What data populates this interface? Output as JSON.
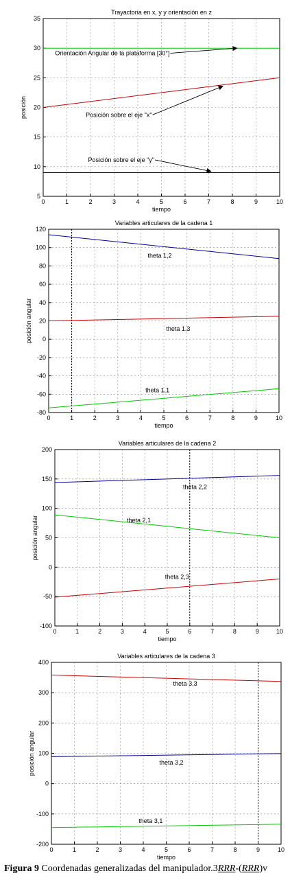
{
  "figure": {
    "caption_prefix": "Figura 9",
    "caption_text": "Coordenadas generalizadas del manipulador.3",
    "caption_underlined": "RRR",
    "caption_mid": "-(",
    "caption_underlined2": "RRR",
    "caption_end": ")v"
  },
  "colors": {
    "green": "#00cc00",
    "red": "#cc0000",
    "blue": "#000099",
    "grid": "#000000"
  },
  "chart_data": [
    {
      "type": "line",
      "title": "Trayactoria en x, y y orientación en z",
      "xlabel": "tiempo",
      "ylabel": "posición",
      "xlim": [
        0,
        10
      ],
      "ylim": [
        5,
        35
      ],
      "xticks": [
        0,
        1,
        2,
        3,
        4,
        5,
        6,
        7,
        8,
        9,
        10
      ],
      "yticks": [
        5,
        10,
        15,
        20,
        25,
        30,
        35
      ],
      "grid": true,
      "series": [
        {
          "color": "#00cc00",
          "x": [
            0,
            10
          ],
          "y": [
            30,
            30
          ]
        },
        {
          "color": "#cc0000",
          "x": [
            0,
            10
          ],
          "y": [
            20,
            25
          ]
        },
        {
          "color": "#000099",
          "x": [
            0,
            10
          ],
          "y": [
            9,
            9
          ]
        }
      ],
      "annotations": [
        {
          "text": "Orientación Angular de la plataforma [30°]",
          "tx": 0.5,
          "ty": 28.8,
          "ax": 8.2,
          "ay": 30
        },
        {
          "text": "Posición sobre el eje \"x\"",
          "tx": 1.8,
          "ty": 18.4,
          "ax": 7.6,
          "ay": 23.6
        },
        {
          "text": "Posición sobre el eje \"y\"",
          "tx": 1.9,
          "ty": 10.8,
          "ax": 7.1,
          "ay": 9.2
        }
      ]
    },
    {
      "type": "line",
      "title": "Variables articulares de la cadena 1",
      "xlabel": "tiempo",
      "ylabel": "posición angular",
      "xlim": [
        0,
        10
      ],
      "ylim": [
        -80,
        120
      ],
      "xticks": [
        0,
        1,
        2,
        3,
        4,
        5,
        6,
        7,
        8,
        9,
        10
      ],
      "yticks": [
        -80,
        -60,
        -40,
        -20,
        0,
        20,
        40,
        60,
        80,
        100,
        120
      ],
      "grid": true,
      "series": [
        {
          "color": "#000099",
          "x": [
            0,
            10
          ],
          "y": [
            114,
            88
          ]
        },
        {
          "color": "#cc0000",
          "x": [
            0,
            10
          ],
          "y": [
            20,
            25
          ]
        },
        {
          "color": "#00cc00",
          "x": [
            0,
            10
          ],
          "y": [
            -75,
            -54
          ]
        }
      ],
      "annotations": [
        {
          "text": "theta 1,2",
          "tx": 4.3,
          "ty": 89
        },
        {
          "text": "theta 1,3",
          "tx": 5.1,
          "ty": 9
        },
        {
          "text": "theta 1,1",
          "tx": 4.2,
          "ty": -58
        }
      ]
    },
    {
      "type": "line",
      "title": "Variables articulares de la cadena 2",
      "xlabel": "tiempo",
      "ylabel": "posición angular",
      "xlim": [
        0,
        10
      ],
      "ylim": [
        -100,
        200
      ],
      "xticks": [
        0,
        1,
        2,
        3,
        4,
        5,
        6,
        7,
        8,
        9,
        10
      ],
      "yticks": [
        -100,
        -50,
        0,
        50,
        100,
        150,
        200
      ],
      "grid": true,
      "series": [
        {
          "color": "#000099",
          "x": [
            0,
            10
          ],
          "y": [
            144,
            156
          ]
        },
        {
          "color": "#00cc00",
          "x": [
            0,
            10
          ],
          "y": [
            89,
            50
          ]
        },
        {
          "color": "#cc0000",
          "x": [
            0,
            10
          ],
          "y": [
            -51,
            -20
          ]
        }
      ],
      "annotations": [
        {
          "text": "theta 2,2",
          "tx": 5.7,
          "ty": 133
        },
        {
          "text": "theta 2,1",
          "tx": 3.2,
          "ty": 76
        },
        {
          "text": "theta 2,3",
          "tx": 4.9,
          "ty": -20
        }
      ]
    },
    {
      "type": "line",
      "title": "Variables articulares de la cadena 3",
      "xlabel": "tiempo",
      "ylabel": "posición angular",
      "xlim": [
        0,
        10
      ],
      "ylim": [
        -200,
        400
      ],
      "xticks": [
        0,
        1,
        2,
        3,
        4,
        5,
        6,
        7,
        8,
        9,
        10
      ],
      "yticks": [
        -200,
        -100,
        0,
        100,
        200,
        300,
        400
      ],
      "grid": true,
      "series": [
        {
          "color": "#cc0000",
          "x": [
            0,
            10
          ],
          "y": [
            358,
            337
          ]
        },
        {
          "color": "#000099",
          "x": [
            0,
            10
          ],
          "y": [
            89,
            99
          ]
        },
        {
          "color": "#00cc00",
          "x": [
            0,
            10
          ],
          "y": [
            -145,
            -134
          ]
        }
      ],
      "annotations": [
        {
          "text": "theta 3,3",
          "tx": 5.3,
          "ty": 323
        },
        {
          "text": "theta 3,2",
          "tx": 4.7,
          "ty": 63
        },
        {
          "text": "theta 3,1",
          "tx": 3.8,
          "ty": -130
        }
      ]
    }
  ]
}
